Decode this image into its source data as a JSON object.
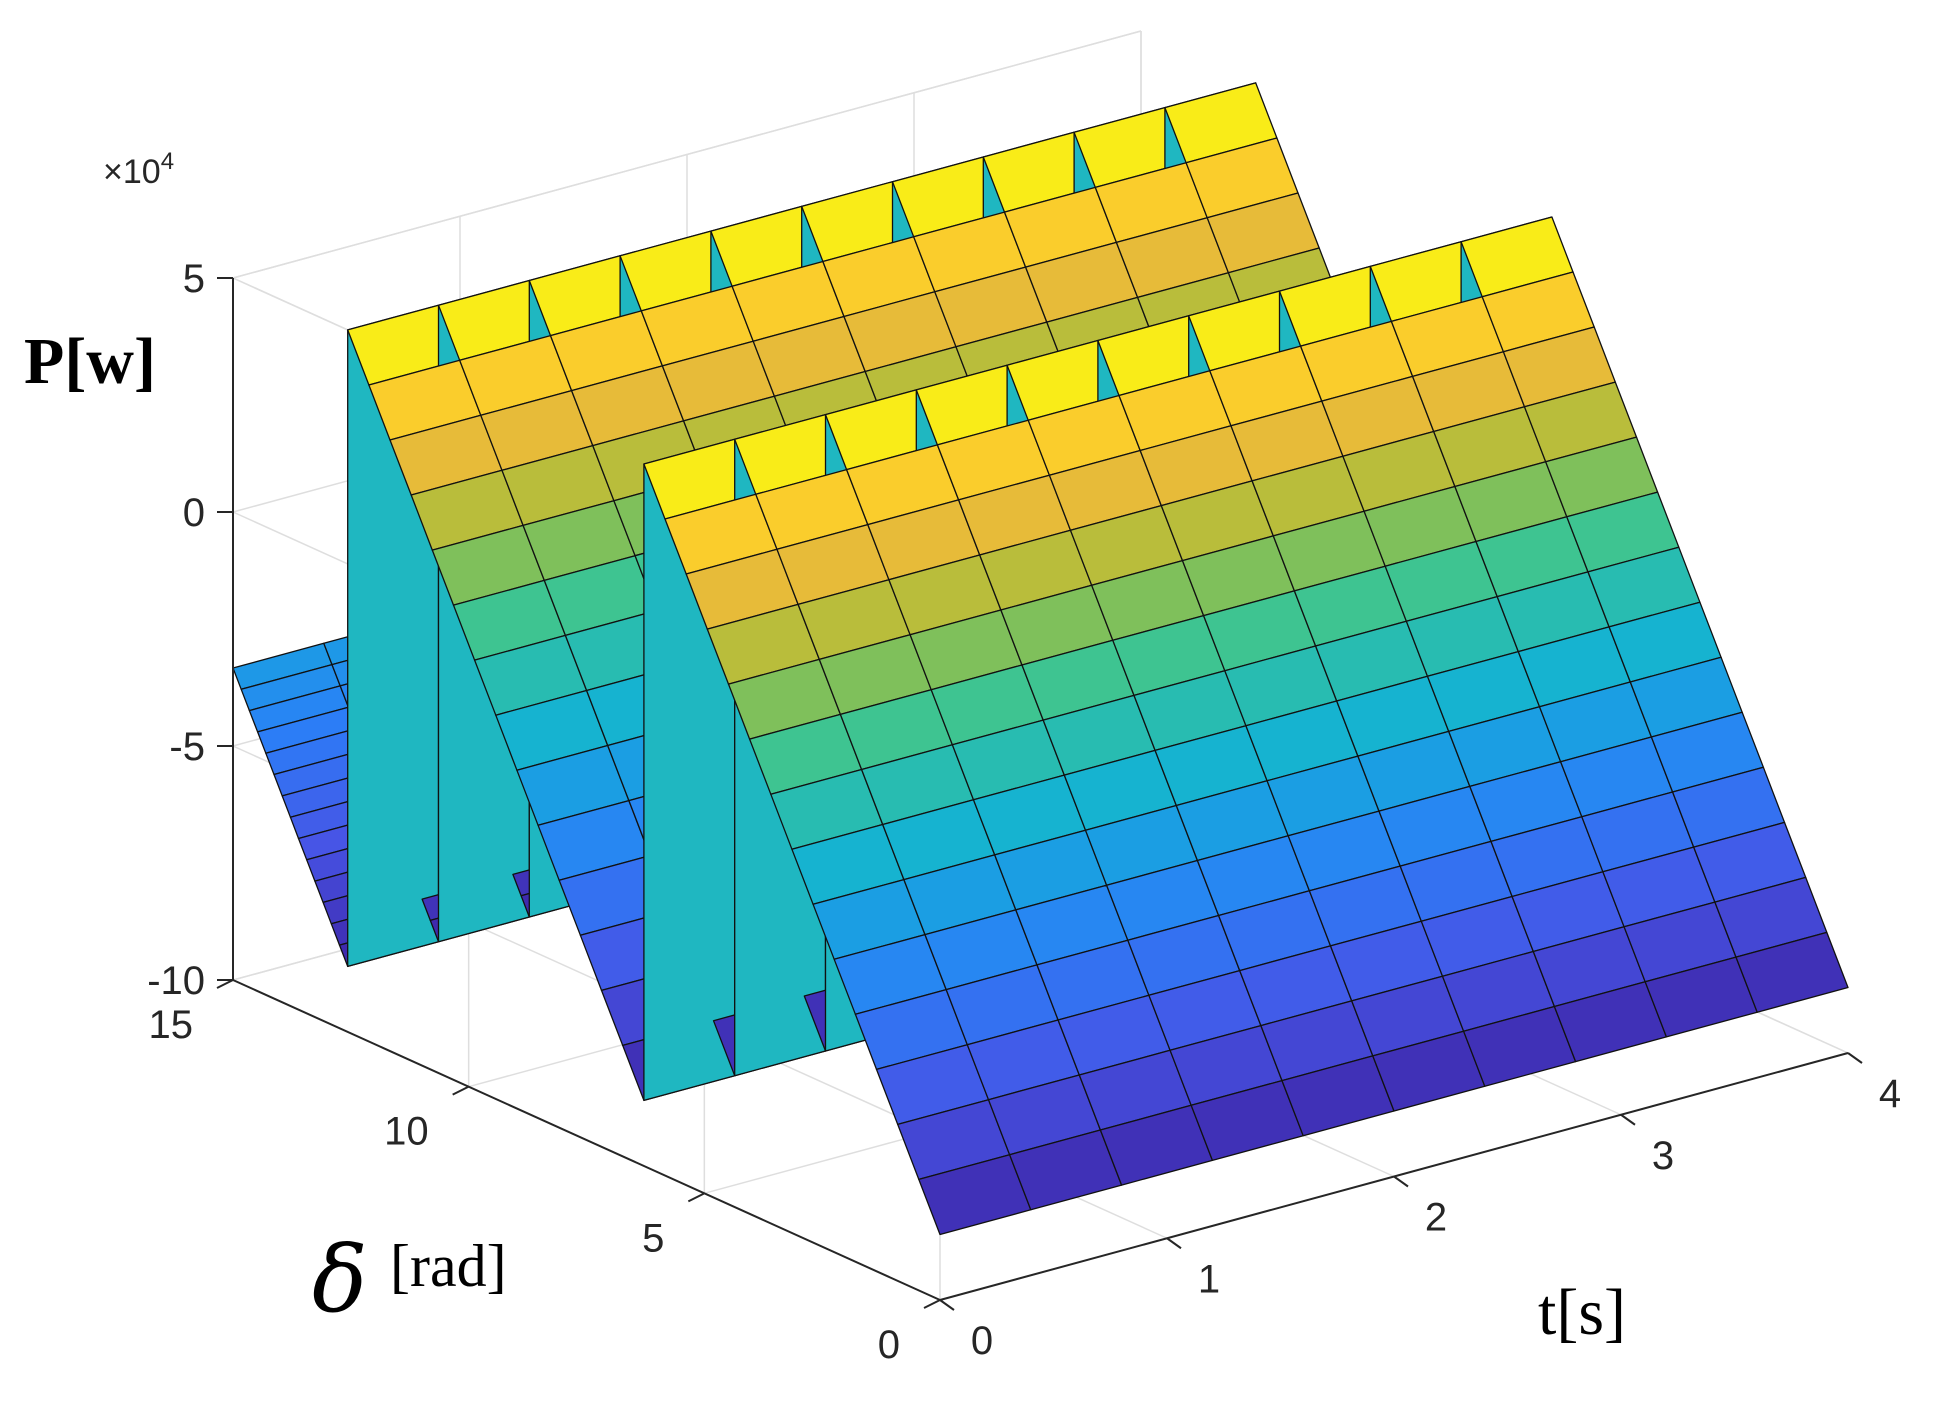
{
  "chart_data": {
    "type": "surface",
    "title": "",
    "xlabel": "t[s]",
    "ylabel_symbol": "δ",
    "ylabel_unit": "[rad]",
    "zlabel": "P[w]",
    "z_exponent_base": "×10",
    "z_exponent_power": "4",
    "xlim": [
      0,
      4
    ],
    "ylim": [
      0,
      15
    ],
    "zlim": [
      -10,
      5
    ],
    "x_ticks": [
      0,
      1,
      2,
      3,
      4
    ],
    "y_ticks": [
      0,
      5,
      10,
      15
    ],
    "z_ticks": [
      -10,
      -5,
      0,
      5
    ],
    "x_tick_labels": [
      "0",
      "1",
      "2",
      "3",
      "4"
    ],
    "y_tick_labels": [
      "0",
      "5",
      "10",
      "15"
    ],
    "z_tick_labels": [
      "-10",
      "-5",
      "0",
      "5"
    ],
    "z_units_scale": 10000,
    "surface": {
      "function": "P = 5.0 - 13.6 * sawtooth(delta / (2*pi)), rising from -8.6 to 5.0 across each 2*pi cycle of delta, constant along t",
      "z_min": -8.6,
      "z_max": 5.0,
      "period_rad": 6.2832,
      "delta_range": [
        0,
        15
      ],
      "t_range": [
        0,
        4
      ],
      "colormap": "parula"
    },
    "grid": true,
    "box": "3-D axes box with grid"
  }
}
